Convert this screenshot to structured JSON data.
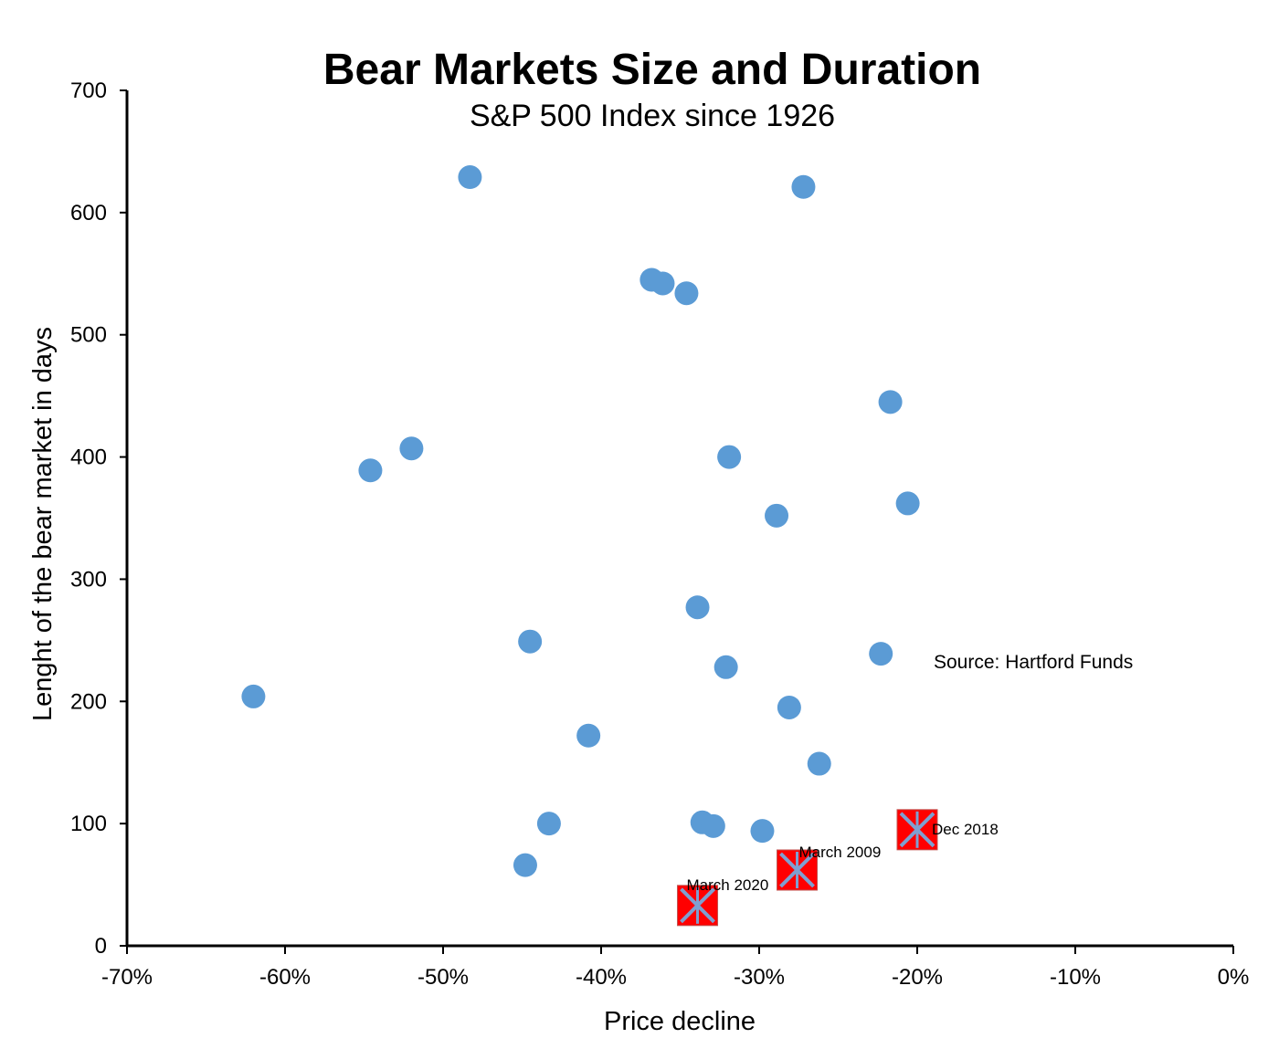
{
  "chart_data": {
    "type": "scatter",
    "title": "Bear Markets Size and Duration",
    "subtitle": "S&P 500 Index since 1926",
    "xlabel": "Price  decline",
    "ylabel": "Lenght of the bear market in days",
    "xlim": [
      -0.7,
      0
    ],
    "ylim": [
      0,
      700
    ],
    "x_ticks": [
      -0.7,
      -0.6,
      -0.5,
      -0.4,
      -0.3,
      -0.2,
      -0.1,
      0
    ],
    "x_tick_labels": [
      "-70%",
      "-60%",
      "-50%",
      "-40%",
      "-30%",
      "-20%",
      "-10%",
      "0%"
    ],
    "y_ticks": [
      0,
      100,
      200,
      300,
      400,
      500,
      600,
      700
    ],
    "y_tick_labels": [
      "0",
      "100",
      "200",
      "300",
      "400",
      "500",
      "600",
      "700"
    ],
    "grid": false,
    "legend": "none",
    "colors": {
      "point": "#5b9bd5",
      "highlight": "#ff0000",
      "cross": "#7f9fd0"
    },
    "source_text": "Source: Hartford Funds",
    "series": [
      {
        "points": [
          {
            "x": -0.483,
            "y": 629
          },
          {
            "x": -0.272,
            "y": 621
          },
          {
            "x": -0.368,
            "y": 545
          },
          {
            "x": -0.361,
            "y": 542
          },
          {
            "x": -0.346,
            "y": 534
          },
          {
            "x": -0.217,
            "y": 445
          },
          {
            "x": -0.52,
            "y": 407
          },
          {
            "x": -0.546,
            "y": 389
          },
          {
            "x": -0.319,
            "y": 400
          },
          {
            "x": -0.206,
            "y": 362
          },
          {
            "x": -0.289,
            "y": 352
          },
          {
            "x": -0.339,
            "y": 277
          },
          {
            "x": -0.445,
            "y": 249
          },
          {
            "x": -0.223,
            "y": 239
          },
          {
            "x": -0.321,
            "y": 228
          },
          {
            "x": -0.62,
            "y": 204
          },
          {
            "x": -0.281,
            "y": 195
          },
          {
            "x": -0.408,
            "y": 172
          },
          {
            "x": -0.262,
            "y": 149
          },
          {
            "x": -0.433,
            "y": 100
          },
          {
            "x": -0.336,
            "y": 101
          },
          {
            "x": -0.329,
            "y": 98
          },
          {
            "x": -0.298,
            "y": 94
          },
          {
            "x": -0.448,
            "y": 66
          }
        ]
      },
      {
        "points": [
          {
            "x": -0.339,
            "y": 33,
            "label": "March 2020"
          },
          {
            "x": -0.276,
            "y": 62,
            "label": "March 2009"
          },
          {
            "x": -0.2,
            "y": 95,
            "label": "Dec 2018"
          }
        ]
      }
    ]
  }
}
